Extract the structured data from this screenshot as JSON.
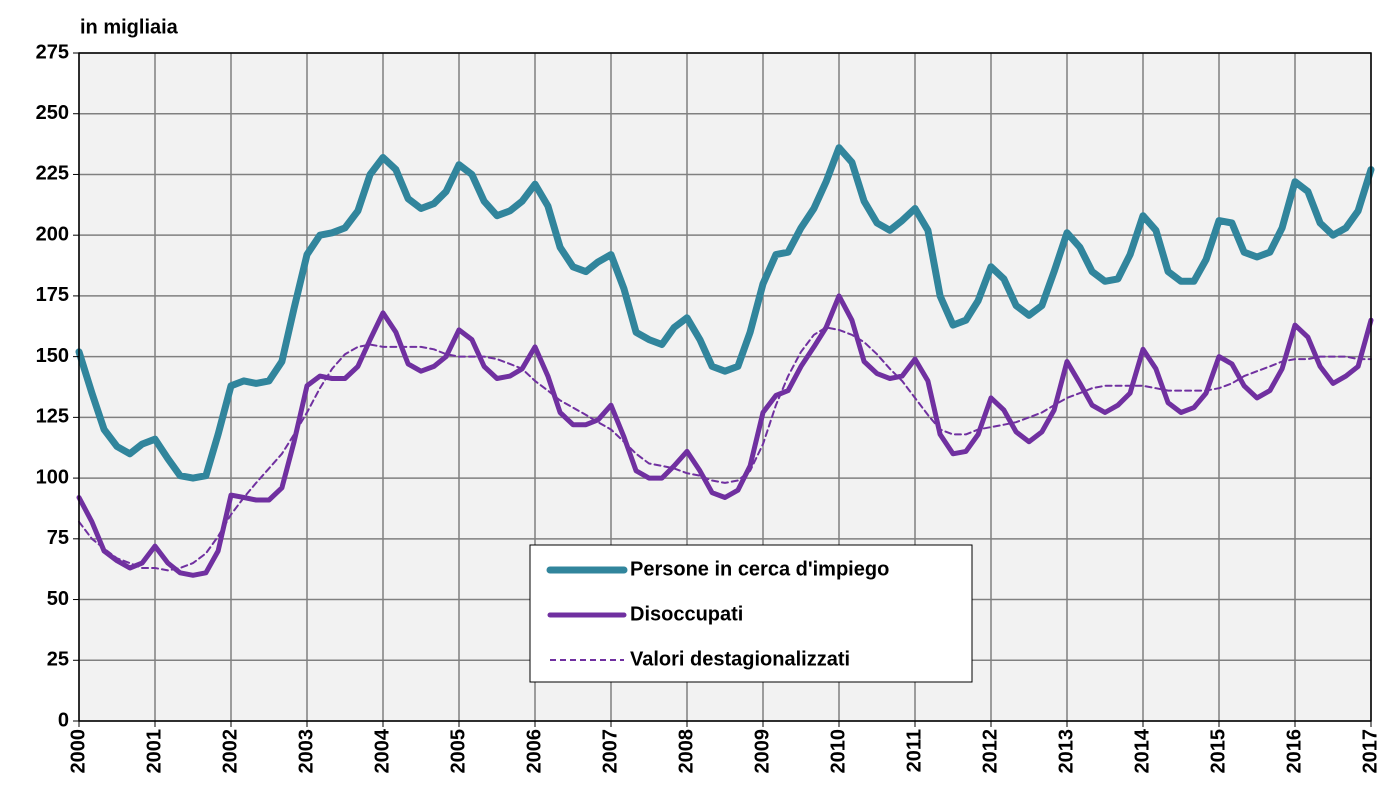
{
  "chart_data": {
    "type": "line",
    "y_label": "in migliaia",
    "x": [
      2000,
      2000.17,
      2000.33,
      2000.5,
      2000.67,
      2000.83,
      2001,
      2001.17,
      2001.33,
      2001.5,
      2001.67,
      2001.83,
      2002,
      2002.17,
      2002.33,
      2002.5,
      2002.67,
      2002.83,
      2003,
      2003.17,
      2003.33,
      2003.5,
      2003.67,
      2003.83,
      2004,
      2004.17,
      2004.33,
      2004.5,
      2004.67,
      2004.83,
      2005,
      2005.17,
      2005.33,
      2005.5,
      2005.67,
      2005.83,
      2006,
      2006.17,
      2006.33,
      2006.5,
      2006.67,
      2006.83,
      2007,
      2007.17,
      2007.33,
      2007.5,
      2007.67,
      2007.83,
      2008,
      2008.17,
      2008.33,
      2008.5,
      2008.67,
      2008.83,
      2009,
      2009.17,
      2009.33,
      2009.5,
      2009.67,
      2009.83,
      2010,
      2010.17,
      2010.33,
      2010.5,
      2010.67,
      2010.83,
      2011,
      2011.17,
      2011.33,
      2011.5,
      2011.67,
      2011.83,
      2012,
      2012.17,
      2012.33,
      2012.5,
      2012.67,
      2012.83,
      2013,
      2013.17,
      2013.33,
      2013.5,
      2013.67,
      2013.83,
      2014,
      2014.17,
      2014.33,
      2014.5,
      2014.67,
      2014.83,
      2015,
      2015.17,
      2015.33,
      2015.5,
      2015.67,
      2015.83,
      2016,
      2016.17,
      2016.33,
      2016.5,
      2016.67,
      2016.83,
      2017
    ],
    "series": [
      {
        "name": "Persone in cerca d'impiego",
        "color": "#31859c",
        "style": "solid",
        "values": [
          152,
          135,
          120,
          113,
          110,
          114,
          116,
          108,
          101,
          100,
          101,
          118,
          138,
          140,
          139,
          140,
          148,
          170,
          192,
          200,
          201,
          203,
          210,
          225,
          232,
          227,
          215,
          211,
          213,
          218,
          229,
          225,
          214,
          208,
          210,
          214,
          221,
          212,
          195,
          187,
          185,
          189,
          192,
          178,
          160,
          157,
          155,
          162,
          166,
          157,
          146,
          144,
          146,
          160,
          180,
          192,
          193,
          203,
          211,
          222,
          236,
          230,
          214,
          205,
          202,
          206,
          211,
          202,
          175,
          163,
          165,
          173,
          187,
          182,
          171,
          167,
          171,
          185,
          201,
          195,
          185,
          181,
          182,
          192,
          208,
          202,
          185,
          181,
          181,
          190,
          206,
          205,
          193,
          191,
          193,
          203,
          222,
          218,
          205,
          200,
          203,
          210,
          227
        ]
      },
      {
        "name": "Disoccupati",
        "color": "#7030a0",
        "style": "solid",
        "values": [
          92,
          82,
          70,
          66,
          63,
          65,
          72,
          65,
          61,
          60,
          61,
          70,
          93,
          92,
          91,
          91,
          96,
          115,
          138,
          142,
          141,
          141,
          146,
          157,
          168,
          160,
          147,
          144,
          146,
          150,
          161,
          157,
          146,
          141,
          142,
          145,
          154,
          142,
          127,
          122,
          122,
          124,
          130,
          117,
          103,
          100,
          100,
          105,
          111,
          103,
          94,
          92,
          95,
          105,
          127,
          134,
          136,
          146,
          154,
          162,
          175,
          165,
          148,
          143,
          141,
          142,
          149,
          140,
          118,
          110,
          111,
          118,
          133,
          128,
          119,
          115,
          119,
          128,
          148,
          139,
          130,
          127,
          130,
          135,
          153,
          145,
          131,
          127,
          129,
          135,
          150,
          147,
          138,
          133,
          136,
          145,
          163,
          158,
          146,
          139,
          142,
          146,
          165
        ]
      },
      {
        "name": "Valori destagionalizzati",
        "color": "#7030a0",
        "style": "dashed",
        "values": [
          82,
          75,
          71,
          67,
          65,
          63,
          63,
          62,
          63,
          65,
          69,
          76,
          85,
          92,
          98,
          104,
          110,
          118,
          127,
          137,
          145,
          151,
          154,
          155,
          154,
          154,
          154,
          154,
          153,
          151,
          150,
          150,
          150,
          149,
          147,
          145,
          140,
          136,
          132,
          129,
          126,
          123,
          120,
          115,
          110,
          106,
          105,
          104,
          102,
          101,
          99,
          98,
          99,
          103,
          114,
          130,
          142,
          152,
          159,
          162,
          161,
          159,
          156,
          151,
          145,
          140,
          133,
          126,
          120,
          118,
          118,
          120,
          121,
          122,
          123,
          125,
          127,
          130,
          133,
          135,
          137,
          138,
          138,
          138,
          138,
          137,
          136,
          136,
          136,
          136,
          137,
          139,
          142,
          144,
          146,
          148,
          149,
          149,
          150,
          150,
          150,
          149,
          149
        ]
      }
    ],
    "xlim": [
      2000,
      2017
    ],
    "xticks": [
      2000,
      2001,
      2002,
      2003,
      2004,
      2005,
      2006,
      2007,
      2008,
      2009,
      2010,
      2011,
      2012,
      2013,
      2014,
      2015,
      2016,
      2017
    ],
    "ylim": [
      0,
      275
    ],
    "yticks": [
      0,
      25,
      50,
      75,
      100,
      125,
      150,
      175,
      200,
      225,
      250,
      275
    ],
    "grid": true
  }
}
